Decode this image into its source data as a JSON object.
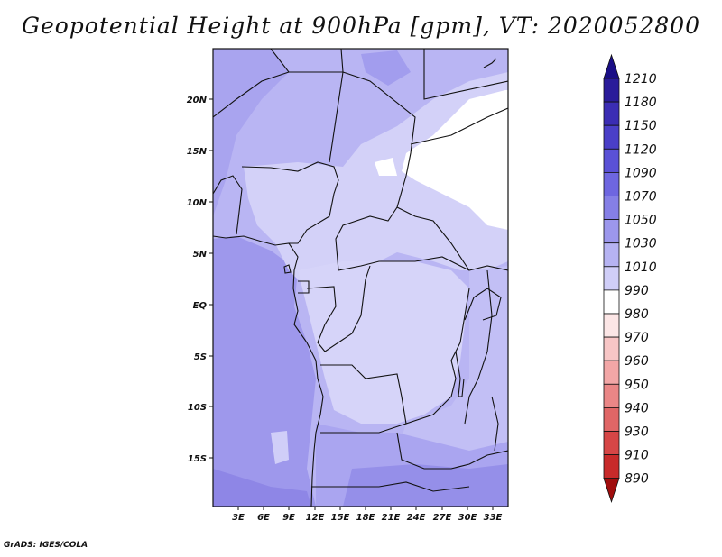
{
  "title": "Geopotential Height at 900hPa [gpm], VT: 2020052800",
  "credit": "GrADS: IGES/COLA",
  "map": {
    "lat_labels": [
      "20N",
      "15N",
      "10N",
      "5N",
      "EQ",
      "5S",
      "10S",
      "15S"
    ],
    "lon_labels": [
      "3E",
      "6E",
      "9E",
      "12E",
      "15E",
      "18E",
      "21E",
      "24E",
      "27E",
      "30E",
      "33E"
    ]
  },
  "colorbar": {
    "labels": [
      "1210",
      "1180",
      "1150",
      "1120",
      "1090",
      "1070",
      "1050",
      "1030",
      "1010",
      "990",
      "980",
      "970",
      "960",
      "950",
      "940",
      "930",
      "910",
      "890"
    ],
    "colors": [
      "#2a1c9a",
      "#3b2db4",
      "#4a3fc8",
      "#5a51d6",
      "#6e66e0",
      "#857fe6",
      "#9c97ec",
      "#b6b3f2",
      "#d0cef8",
      "#ffffff",
      "#fce6e6",
      "#f8c6c6",
      "#f2a6a6",
      "#ea8686",
      "#e06666",
      "#d64646",
      "#c82a2a",
      "#b01515"
    ],
    "colors_extra": [
      "#1a0e86",
      "#a00c0c"
    ]
  }
}
